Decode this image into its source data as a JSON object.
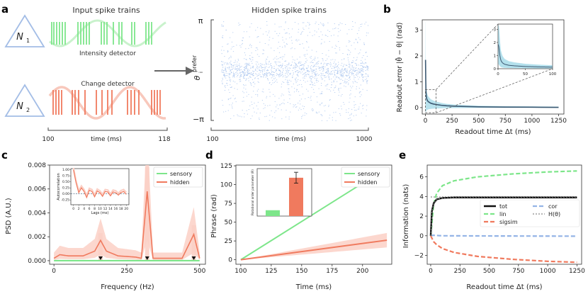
{
  "panel_labels": {
    "a": "a",
    "b": "b",
    "c": "c",
    "d": "d",
    "e": "e"
  },
  "panel_a": {
    "title_left": "Input spike trains",
    "title_right": "Hidden spike trains",
    "neuron1_label": "N",
    "neuron1_sub": "1",
    "neuron2_label": "N",
    "neuron2_sub": "2",
    "intensity_label": "Intensity detector",
    "change_label": "Change detector",
    "left_axis": {
      "start": "100",
      "end": "118",
      "label": "time (ms)"
    },
    "right_axis": {
      "start": "100",
      "end": "1000",
      "label": "time (ms)"
    },
    "y_top": "π",
    "y_bottom": "−π",
    "y_label": "θ",
    "y_label_sub": "i",
    "y_label_sup": "prefer",
    "colors": {
      "green": "#7de68a",
      "green_light": "#c9f2cc",
      "red": "#f07a5e",
      "red_light": "#f8c8bc",
      "blue": "#a8c4ee",
      "tri": "#a3bde6"
    }
  },
  "chart_data": [
    {
      "panel": "b",
      "type": "line",
      "title": "",
      "xlabel": "Readout time Δt (ms)",
      "ylabel": "Readout error |θ̂ − θ| (rad)",
      "xlim": [
        -30,
        1300
      ],
      "ylim": [
        -0.25,
        3.4
      ],
      "xticks": [
        "0",
        "250",
        "500",
        "750",
        "1000",
        "1250"
      ],
      "yticks": [
        "0",
        "1",
        "2",
        "3"
      ],
      "series": [
        {
          "name": "readout error",
          "x": [
            1,
            3,
            5,
            8,
            12,
            20,
            30,
            50,
            75,
            100,
            150,
            200,
            300,
            500,
            750,
            1000,
            1250
          ],
          "values": [
            1.85,
            1.1,
            0.65,
            0.45,
            0.34,
            0.26,
            0.22,
            0.17,
            0.14,
            0.12,
            0.09,
            0.07,
            0.05,
            0.03,
            0.02,
            0.015,
            0.01
          ]
        }
      ],
      "inset": {
        "xlim": [
          0,
          100
        ],
        "ylim": [
          0,
          3.4
        ],
        "xticks": [
          "0",
          "50",
          "100"
        ],
        "yticks": [
          "0",
          "1",
          "2",
          "3"
        ]
      },
      "colors": {
        "line": "#3d5a73",
        "band": "#a6dbe9"
      }
    },
    {
      "panel": "c",
      "type": "line",
      "title": "",
      "xlabel": "Frequency (Hz)",
      "ylabel": "PSD (A.U.)",
      "xlim": [
        -15,
        520
      ],
      "ylim": [
        -0.0003,
        0.008
      ],
      "xticks": [
        "0",
        "250",
        "500"
      ],
      "yticks": [
        "0.000",
        "0.002",
        "0.004",
        "0.006",
        "0.008"
      ],
      "legend": [
        "sensory",
        "hidden"
      ],
      "peaks_hz": [
        160,
        320,
        480
      ],
      "peak_values": [
        0.0017,
        0.0058,
        0.0022
      ],
      "series": [
        {
          "name": "sensory",
          "x": [
            0,
            500
          ],
          "values": [
            0.0,
            0.0
          ]
        },
        {
          "name": "hidden",
          "x": [
            0,
            20,
            50,
            100,
            140,
            160,
            180,
            220,
            280,
            300,
            320,
            340,
            380,
            440,
            480,
            500
          ],
          "values": [
            0.0002,
            0.0005,
            0.0004,
            0.0004,
            0.0008,
            0.0017,
            0.0008,
            0.0004,
            0.0003,
            0.0002,
            0.0058,
            0.0002,
            0.0002,
            0.0002,
            0.0022,
            0.0002
          ]
        }
      ],
      "inset": {
        "type": "line",
        "xlabel": "Lags (ms)",
        "ylabel": "Autocorrelation",
        "xlim": [
          -1,
          21
        ],
        "ylim": [
          -0.45,
          1.05
        ],
        "xticks": [
          "0",
          "2",
          "4",
          "6",
          "8",
          "10",
          "12",
          "14",
          "16",
          "18",
          "20"
        ],
        "yticks": [
          "-0.25",
          "0.00",
          "0.25",
          "0.50",
          "0.75",
          "1.00"
        ],
        "lags": [
          0,
          1,
          2,
          3,
          4,
          5,
          6,
          7,
          8,
          9,
          10,
          11,
          12,
          13,
          14,
          15,
          16,
          17,
          18,
          19,
          20
        ],
        "values": [
          1.0,
          0.45,
          0.05,
          0.25,
          0.1,
          -0.15,
          0.15,
          0.1,
          -0.12,
          0.12,
          0.05,
          -0.1,
          0.1,
          0.08,
          -0.08,
          0.08,
          0.05,
          -0.05,
          0.06,
          0.1,
          -0.02
        ]
      },
      "colors": {
        "sensory": "#7de68a",
        "hidden": "#f07a5e",
        "band": "#fbd0c6"
      }
    },
    {
      "panel": "d",
      "type": "line",
      "title": "",
      "xlabel": "Time (ms)",
      "ylabel": "Phrase (rad)",
      "xlim": [
        96,
        224
      ],
      "ylim": [
        -6,
        126
      ],
      "xticks": [
        "100",
        "125",
        "150",
        "175",
        "200"
      ],
      "yticks": [
        "0",
        "25",
        "50",
        "75",
        "100",
        "125"
      ],
      "legend": [
        "sensory",
        "hidden"
      ],
      "series": [
        {
          "name": "sensory",
          "x": [
            100,
            210
          ],
          "values": [
            0,
            112
          ]
        },
        {
          "name": "hidden",
          "x": [
            100,
            220
          ],
          "values": [
            0,
            26
          ]
        }
      ],
      "inset": {
        "type": "bar",
        "ylabel": "Rotational order parameter (R)",
        "categories": [
          "sensory",
          "hidden"
        ],
        "values": [
          0.16,
          1.05
        ],
        "errors": [
          0.0,
          0.15
        ],
        "ylim": [
          0,
          1.3
        ]
      },
      "colors": {
        "sensory": "#7de68a",
        "hidden": "#f07a5e",
        "band": "#fbd0c6"
      }
    },
    {
      "panel": "e",
      "type": "line",
      "title": "",
      "xlabel": "Readout time Δt (ms)",
      "ylabel": "Information (nats)",
      "xlim": [
        -30,
        1290
      ],
      "ylim": [
        -2.9,
        7.2
      ],
      "xticks": [
        "0",
        "250",
        "500",
        "750",
        "1000",
        "1250"
      ],
      "yticks": [
        "−2",
        "0",
        "2",
        "4",
        "6"
      ],
      "legend": [
        "tot",
        "lin",
        "sigsim",
        "cor",
        "H(θ)"
      ],
      "series": [
        {
          "name": "tot",
          "x": [
            0,
            10,
            25,
            50,
            100,
            200,
            500,
            1250
          ],
          "values": [
            0,
            2.5,
            3.3,
            3.7,
            3.85,
            3.9,
            3.9,
            3.9
          ]
        },
        {
          "name": "lin",
          "x": [
            0,
            25,
            50,
            100,
            200,
            400,
            700,
            1000,
            1250
          ],
          "values": [
            0,
            3.2,
            4.3,
            5.1,
            5.6,
            6.0,
            6.3,
            6.5,
            6.6
          ]
        },
        {
          "name": "sigsim",
          "x": [
            0,
            25,
            50,
            100,
            200,
            400,
            700,
            1000,
            1250
          ],
          "values": [
            0,
            -0.6,
            -0.9,
            -1.3,
            -1.7,
            -2.1,
            -2.4,
            -2.6,
            -2.7
          ]
        },
        {
          "name": "cor",
          "x": [
            0,
            20,
            100,
            500,
            1250
          ],
          "values": [
            0,
            0.05,
            0.0,
            -0.02,
            -0.04
          ]
        },
        {
          "name": "H(θ)",
          "x": [
            0,
            1250
          ],
          "values": [
            3.95,
            3.95
          ]
        }
      ],
      "colors": {
        "tot": "#111111",
        "lin": "#7de68a",
        "sigsim": "#f07a5e",
        "cor": "#94b4e6",
        "H": "#b9b9b9"
      }
    }
  ]
}
